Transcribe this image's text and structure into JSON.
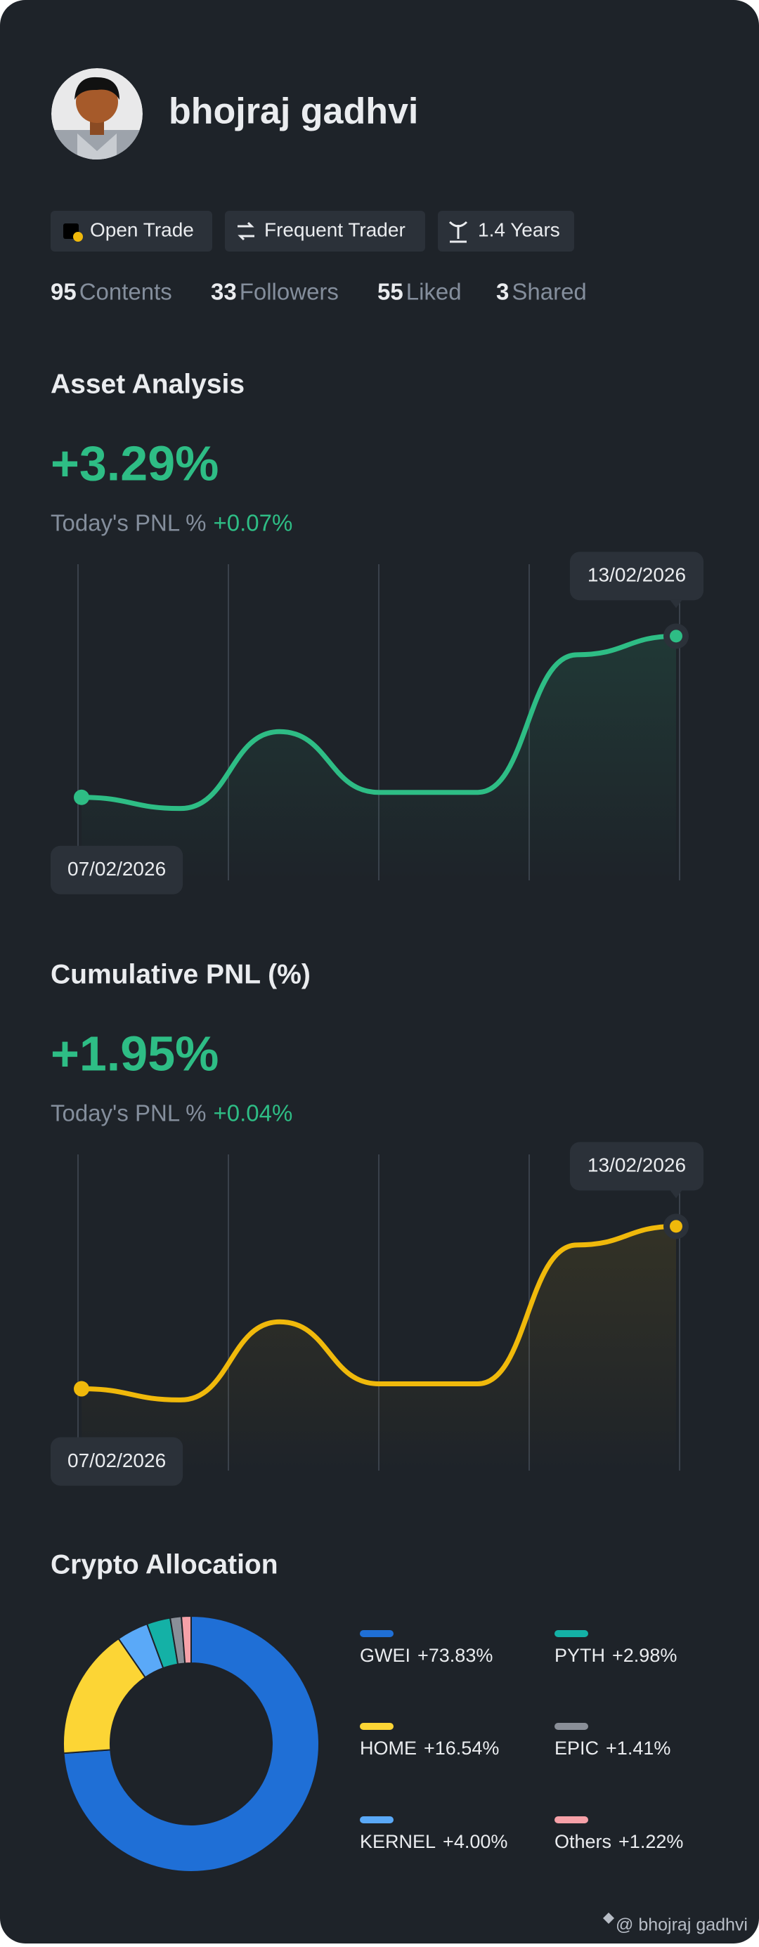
{
  "profile": {
    "name": "bhojraj gadhvi",
    "badges": [
      "Open Trade",
      "Frequent Trader",
      "1.4 Years"
    ],
    "stats": [
      {
        "value": 95,
        "label": "Contents"
      },
      {
        "value": 33,
        "label": "Followers"
      },
      {
        "value": 55,
        "label": "Liked"
      },
      {
        "value": 3,
        "label": "Shared"
      }
    ]
  },
  "charts": [
    {
      "type": "line",
      "title": "Asset Analysis",
      "headline": "+3.29%",
      "pnl_label": "Today's PNL %",
      "pnl_value": "+0.07%",
      "start_label": "07/02/2026",
      "end_label": "13/02/2026",
      "color": "#2ebd85",
      "x": [
        0,
        1,
        2,
        3,
        4,
        5,
        6
      ],
      "values": [
        67,
        58,
        120,
        71,
        71,
        182,
        197
      ],
      "xlim": [
        0,
        6
      ],
      "ylim": [
        0,
        255
      ]
    },
    {
      "type": "line",
      "title": "Cumulative PNL (%)",
      "headline": "+1.95%",
      "pnl_label": "Today's PNL %",
      "pnl_value": "+0.04%",
      "start_label": "07/02/2026",
      "end_label": "13/02/2026",
      "color": "#f0b90b",
      "x": [
        0,
        1,
        2,
        3,
        4,
        5,
        6
      ],
      "values": [
        66,
        57,
        120,
        70,
        70,
        182,
        197
      ],
      "xlim": [
        0,
        6
      ],
      "ylim": [
        0,
        255
      ]
    }
  ],
  "allocation": {
    "type": "pie",
    "title": "Crypto Allocation",
    "categories": [
      "GWEI",
      "HOME",
      "KERNEL",
      "PYTH",
      "EPIC",
      "Others"
    ],
    "values": [
      73.83,
      16.54,
      4.0,
      2.98,
      1.41,
      1.22
    ],
    "value_labels": [
      "+73.83%",
      "+16.54%",
      "+4.00%",
      "+2.98%",
      "+1.41%",
      "+1.22%"
    ],
    "colors": [
      "#1f6fd6",
      "#fcd535",
      "#5aa9f8",
      "#14b1a6",
      "#8a8f98",
      "#f6a1a8"
    ]
  },
  "footer": "@ bhojraj gadhvi"
}
